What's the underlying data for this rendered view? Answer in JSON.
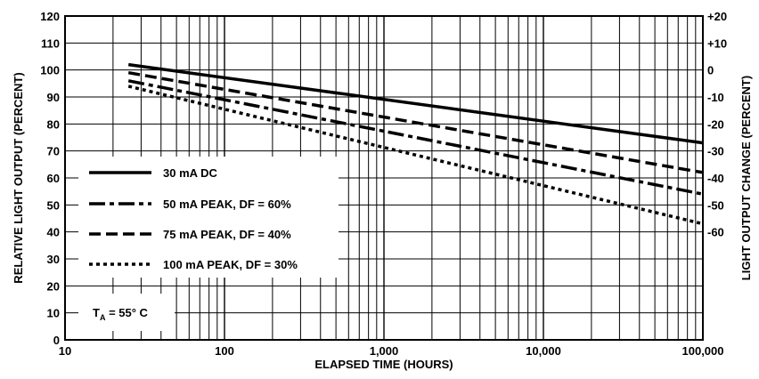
{
  "chart_data": {
    "type": "line",
    "xlabel": "ELAPSED TIME (HOURS)",
    "ylabel": "RELATIVE LIGHT OUTPUT (PERCENT)",
    "y2label": "LIGHT OUTPUT CHANGE (PERCENT)",
    "xscale": "log",
    "xlim": [
      10,
      100000
    ],
    "ylim": [
      0,
      120
    ],
    "x_ticks": [
      10,
      100,
      1000,
      10000,
      100000
    ],
    "x_tick_labels": [
      "10",
      "100",
      "1,000",
      "10,000",
      "100,000"
    ],
    "y_ticks": [
      0,
      10,
      20,
      30,
      40,
      50,
      60,
      70,
      80,
      90,
      100,
      110,
      120
    ],
    "y_tick_labels": [
      "0",
      "10",
      "20",
      "30",
      "40",
      "50",
      "60",
      "70",
      "80",
      "90",
      "100",
      "110",
      "120"
    ],
    "y2_ticks": [
      120,
      110,
      100,
      90,
      80,
      70,
      60,
      50,
      40
    ],
    "y2_tick_labels": [
      "+20",
      "+10",
      "0",
      "-10",
      "-20",
      "-30",
      "-40",
      "-50",
      "-60"
    ],
    "grid": true,
    "legend_position": "left",
    "series": [
      {
        "name": "30 mA DC",
        "style": "solid",
        "x": [
          25,
          100000
        ],
        "y": [
          102,
          73
        ]
      },
      {
        "name": "50 mA PEAK, DF = 60%",
        "style": "dash-dot",
        "x": [
          25,
          100000
        ],
        "y": [
          96,
          54
        ]
      },
      {
        "name": "75 mA PEAK, DF = 40%",
        "style": "dashed",
        "x": [
          25,
          100000
        ],
        "y": [
          99,
          62
        ]
      },
      {
        "name": "100 mA PEAK, DF = 30%",
        "style": "dotted",
        "x": [
          25,
          100000
        ],
        "y": [
          94,
          43
        ]
      }
    ],
    "annotation": {
      "prefix": "T",
      "subscript": "A",
      "suffix": " = 55° C"
    }
  }
}
